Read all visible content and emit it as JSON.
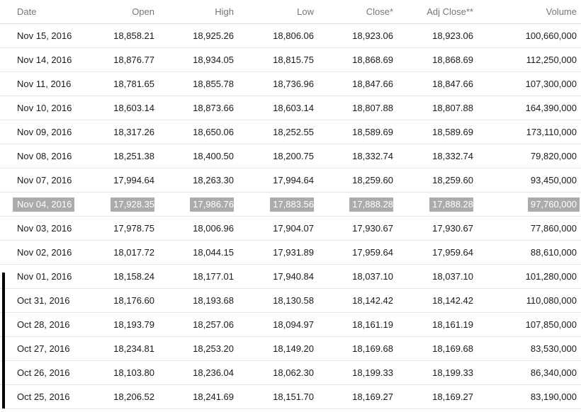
{
  "colors": {
    "background": "#ffffff",
    "header_text": "#6e7780",
    "body_text": "#1a1a1a",
    "row_divider": "#e7e7e7",
    "selection_background": "#ababab",
    "selection_text": "#ffffff",
    "scrollbar": "#000000"
  },
  "table": {
    "columns": [
      {
        "id": "date",
        "label": "Date",
        "align": "left"
      },
      {
        "id": "open",
        "label": "Open",
        "align": "right"
      },
      {
        "id": "high",
        "label": "High",
        "align": "right"
      },
      {
        "id": "low",
        "label": "Low",
        "align": "right"
      },
      {
        "id": "close",
        "label": "Close*",
        "align": "right"
      },
      {
        "id": "adj_close",
        "label": "Adj Close**",
        "align": "right"
      },
      {
        "id": "volume",
        "label": "Volume",
        "align": "right"
      }
    ],
    "rows": [
      {
        "selected": false,
        "cells": [
          "Nov 15, 2016",
          "18,858.21",
          "18,925.26",
          "18,806.06",
          "18,923.06",
          "18,923.06",
          "100,660,000"
        ]
      },
      {
        "selected": false,
        "cells": [
          "Nov 14, 2016",
          "18,876.77",
          "18,934.05",
          "18,815.75",
          "18,868.69",
          "18,868.69",
          "112,250,000"
        ]
      },
      {
        "selected": false,
        "cells": [
          "Nov 11, 2016",
          "18,781.65",
          "18,855.78",
          "18,736.96",
          "18,847.66",
          "18,847.66",
          "107,300,000"
        ]
      },
      {
        "selected": false,
        "cells": [
          "Nov 10, 2016",
          "18,603.14",
          "18,873.66",
          "18,603.14",
          "18,807.88",
          "18,807.88",
          "164,390,000"
        ]
      },
      {
        "selected": false,
        "cells": [
          "Nov 09, 2016",
          "18,317.26",
          "18,650.06",
          "18,252.55",
          "18,589.69",
          "18,589.69",
          "173,110,000"
        ]
      },
      {
        "selected": false,
        "cells": [
          "Nov 08, 2016",
          "18,251.38",
          "18,400.50",
          "18,200.75",
          "18,332.74",
          "18,332.74",
          "79,820,000"
        ]
      },
      {
        "selected": false,
        "cells": [
          "Nov 07, 2016",
          "17,994.64",
          "18,263.30",
          "17,994.64",
          "18,259.60",
          "18,259.60",
          "93,450,000"
        ]
      },
      {
        "selected": true,
        "cells": [
          "Nov 04, 2016",
          "17,928.35",
          "17,986.76",
          "17,883.56",
          "17,888.28",
          "17,888.28",
          "97,760,000"
        ]
      },
      {
        "selected": false,
        "cells": [
          "Nov 03, 2016",
          "17,978.75",
          "18,006.96",
          "17,904.07",
          "17,930.67",
          "17,930.67",
          "77,860,000"
        ]
      },
      {
        "selected": false,
        "cells": [
          "Nov 02, 2016",
          "18,017.72",
          "18,044.15",
          "17,931.89",
          "17,959.64",
          "17,959.64",
          "88,610,000"
        ]
      },
      {
        "selected": false,
        "cells": [
          "Nov 01, 2016",
          "18,158.24",
          "18,177.01",
          "17,940.84",
          "18,037.10",
          "18,037.10",
          "101,280,000"
        ]
      },
      {
        "selected": false,
        "cells": [
          "Oct 31, 2016",
          "18,176.60",
          "18,193.68",
          "18,130.58",
          "18,142.42",
          "18,142.42",
          "110,080,000"
        ]
      },
      {
        "selected": false,
        "cells": [
          "Oct 28, 2016",
          "18,193.79",
          "18,257.06",
          "18,094.97",
          "18,161.19",
          "18,161.19",
          "107,850,000"
        ]
      },
      {
        "selected": false,
        "cells": [
          "Oct 27, 2016",
          "18,234.81",
          "18,253.20",
          "18,149.20",
          "18,169.68",
          "18,169.68",
          "83,530,000"
        ]
      },
      {
        "selected": false,
        "cells": [
          "Oct 26, 2016",
          "18,103.80",
          "18,236.04",
          "18,062.30",
          "18,199.33",
          "18,199.33",
          "86,340,000"
        ]
      },
      {
        "selected": false,
        "cells": [
          "Oct 25, 2016",
          "18,206.52",
          "18,241.69",
          "18,151.70",
          "18,169.27",
          "18,169.27",
          "83,190,000"
        ]
      }
    ]
  }
}
